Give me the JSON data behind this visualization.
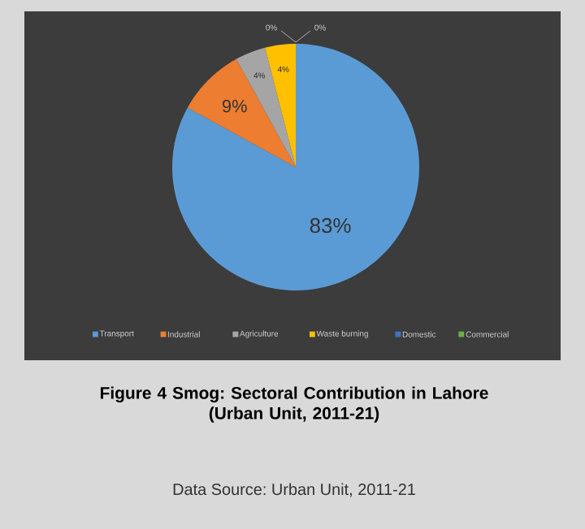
{
  "chart_data": {
    "type": "pie",
    "title": "Figure 4 Smog: Sectoral Contribution in Lahore",
    "subtitle": "(Urban Unit, 2011-21)",
    "categories": [
      "Transport",
      "Industrial",
      "Agriculture",
      "Waste burning",
      "Domestic",
      "Commercial"
    ],
    "values": [
      83,
      9,
      4,
      4,
      0,
      0
    ],
    "colors": [
      "#5b9bd5",
      "#ed7d31",
      "#a5a5a5",
      "#ffc000",
      "#4472c4",
      "#70ad47"
    ],
    "value_labels": [
      "83%",
      "9%",
      "4%",
      "4%",
      "0%",
      "0%"
    ],
    "legend": "bottom",
    "annotations": [
      "Data Source: Urban Unit, 2011-21"
    ]
  }
}
